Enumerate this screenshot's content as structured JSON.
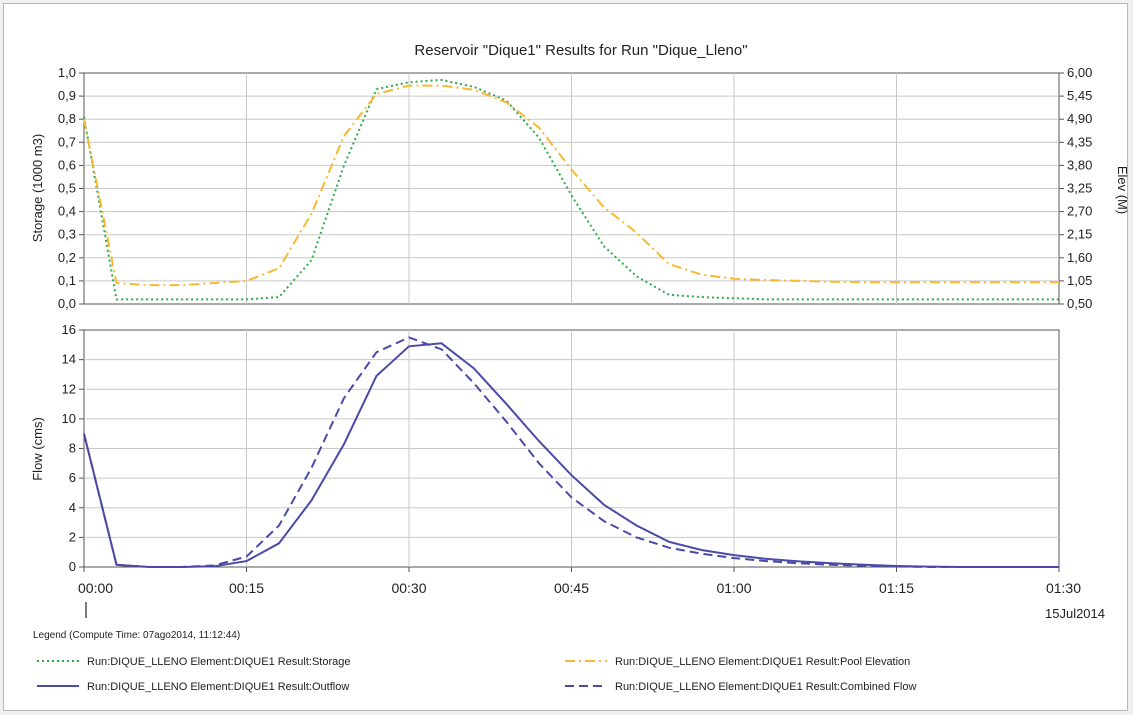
{
  "chart_data": [
    {
      "type": "line",
      "title": "Reservoir \"Dique1\" Results for Run \"Dique_Lleno\"",
      "ylabel": "Storage (1000 m3)",
      "y2label": "Elev (M)",
      "ylim": [
        0,
        1.0
      ],
      "y2lim": [
        0.5,
        6.0
      ],
      "yticks": [
        "0,0",
        "0,1",
        "0,2",
        "0,3",
        "0,4",
        "0,5",
        "0,6",
        "0,7",
        "0,8",
        "0,9",
        "1,0"
      ],
      "y2ticks": [
        "0,50",
        "1,05",
        "1,60",
        "2,15",
        "2,70",
        "3,25",
        "3,80",
        "4,35",
        "4,90",
        "5,45",
        "6,00"
      ],
      "xlim_minutes": [
        0,
        90
      ],
      "grid": true,
      "series": [
        {
          "name": "Run:DIQUE_LLENO Element:DIQUE1 Result:Storage",
          "axis": "left",
          "color": "#2eab48",
          "style": "dotted",
          "x": [
            0,
            3,
            6,
            9,
            12,
            15,
            18,
            21,
            24,
            27,
            30,
            33,
            36,
            39,
            42,
            45,
            48,
            51,
            54,
            57,
            60,
            63,
            66,
            69,
            72,
            75,
            78,
            81,
            84,
            87,
            90
          ],
          "values": [
            0.81,
            0.02,
            0.02,
            0.02,
            0.02,
            0.02,
            0.03,
            0.19,
            0.6,
            0.93,
            0.96,
            0.97,
            0.94,
            0.88,
            0.72,
            0.47,
            0.25,
            0.12,
            0.04,
            0.03,
            0.025,
            0.02,
            0.02,
            0.02,
            0.02,
            0.02,
            0.02,
            0.02,
            0.02,
            0.02,
            0.02
          ]
        },
        {
          "name": "Run:DIQUE_LLENO Element:DIQUE1 Result:Pool Elevation",
          "axis": "right",
          "color": "#f7b934",
          "style": "dashdot",
          "x": [
            0,
            3,
            6,
            9,
            12,
            15,
            18,
            21,
            24,
            27,
            30,
            33,
            36,
            39,
            42,
            45,
            48,
            51,
            54,
            57,
            60,
            63,
            66,
            69,
            72,
            75,
            78,
            81,
            84,
            87,
            90
          ],
          "values": [
            4.9,
            1.0,
            0.95,
            0.95,
            1.0,
            1.05,
            1.35,
            2.65,
            4.5,
            5.5,
            5.7,
            5.7,
            5.6,
            5.3,
            4.7,
            3.7,
            2.8,
            2.2,
            1.45,
            1.2,
            1.1,
            1.07,
            1.05,
            1.03,
            1.02,
            1.02,
            1.02,
            1.02,
            1.02,
            1.02,
            1.02
          ]
        }
      ]
    },
    {
      "type": "line",
      "ylabel": "Flow (cms)",
      "ylim": [
        0,
        16
      ],
      "yticks": [
        "0",
        "2",
        "4",
        "6",
        "8",
        "10",
        "12",
        "14",
        "16"
      ],
      "xlim_minutes": [
        0,
        90
      ],
      "xticks": [
        "00:00",
        "00:15",
        "00:30",
        "00:45",
        "01:00",
        "01:15",
        "01:30"
      ],
      "date_label": "15Jul2014",
      "grid": true,
      "series": [
        {
          "name": "Run:DIQUE_LLENO Element:DIQUE1 Result:Outflow",
          "color": "#4a4aa8",
          "style": "solid",
          "x": [
            0,
            3,
            6,
            9,
            12,
            15,
            18,
            21,
            24,
            27,
            30,
            33,
            36,
            39,
            42,
            45,
            48,
            51,
            54,
            57,
            60,
            63,
            66,
            69,
            72,
            75,
            78,
            81,
            84,
            87,
            90
          ],
          "values": [
            9.0,
            0.15,
            0.0,
            0.0,
            0.05,
            0.4,
            1.6,
            4.5,
            8.3,
            12.9,
            14.9,
            15.1,
            13.4,
            11.0,
            8.5,
            6.2,
            4.2,
            2.8,
            1.7,
            1.15,
            0.8,
            0.55,
            0.38,
            0.25,
            0.15,
            0.07,
            0.03,
            0.0,
            0.0,
            0.0,
            0.0
          ]
        },
        {
          "name": "Run:DIQUE_LLENO Element:DIQUE1 Result:Combined Flow",
          "color": "#4a4aa8",
          "style": "dashed",
          "x": [
            0,
            3,
            6,
            9,
            12,
            15,
            18,
            21,
            24,
            27,
            30,
            33,
            36,
            39,
            42,
            45,
            48,
            51,
            54,
            57,
            60,
            63,
            66,
            69,
            72,
            75,
            78,
            81,
            84,
            87,
            90
          ],
          "values": [
            9.0,
            0.15,
            0.0,
            0.0,
            0.1,
            0.7,
            2.8,
            6.7,
            11.4,
            14.5,
            15.5,
            14.7,
            12.4,
            9.8,
            7.0,
            4.7,
            3.1,
            2.0,
            1.3,
            0.9,
            0.6,
            0.4,
            0.25,
            0.15,
            0.08,
            0.04,
            0.0,
            0.0,
            0.0,
            0.0,
            0.0
          ]
        }
      ]
    }
  ],
  "legend": {
    "title": "Legend (Compute Time: 07ago2014, 11:12:44)",
    "placement": "bottom"
  }
}
